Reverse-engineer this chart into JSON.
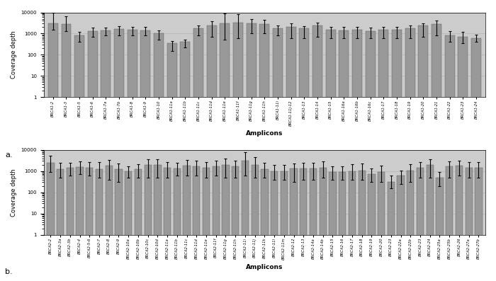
{
  "brca1_labels": [
    "BRCA1-2",
    "BRCA1-3",
    "BRCA1-5",
    "BRCA1-6",
    "BRCA1-7a",
    "BRCA1-7b",
    "BRCA1-8",
    "BRCA1-9",
    "BRCA1-10",
    "BRCA1-11a",
    "BRCA1-11b",
    "BRCA1-11c",
    "BRCA1-11d",
    "BRCA1-11e",
    "BRCA1-11f",
    "BRCA1-11g",
    "BRCA1-11h",
    "BRCA1-11i",
    "BRCA1-11j-12",
    "BRCA1-13",
    "BRCA1-14",
    "BRCA1-15",
    "BRCA1-16a",
    "BRCA1-16b",
    "BRCA1-16c",
    "BRCA1-17",
    "BRCA1-18",
    "BRCA1-19",
    "BRCA1-20",
    "BRCA1-21",
    "BRCA1-22",
    "BRCA1-23",
    "BRCA1-24"
  ],
  "brca1_values": [
    3000,
    2800,
    800,
    1300,
    1400,
    1600,
    1500,
    1400,
    1000,
    350,
    420,
    1800,
    2500,
    3000,
    3200,
    3000,
    2800,
    1800,
    2000,
    1800,
    2500,
    1500,
    1400,
    1500,
    1300,
    1500,
    1500,
    1800,
    2500,
    2800,
    800,
    700,
    600
  ],
  "brca1_err_low": [
    1500,
    1500,
    400,
    600,
    600,
    800,
    700,
    600,
    500,
    200,
    200,
    1000,
    1800,
    2500,
    2600,
    2000,
    1800,
    1000,
    1400,
    1200,
    1800,
    900,
    800,
    900,
    700,
    900,
    900,
    1200,
    1800,
    2000,
    400,
    350,
    200
  ],
  "brca1_err_high": [
    6500,
    4000,
    400,
    600,
    500,
    600,
    500,
    600,
    400,
    100,
    100,
    600,
    1200,
    6000,
    5000,
    1800,
    1700,
    700,
    1000,
    500,
    700,
    600,
    600,
    600,
    600,
    600,
    600,
    600,
    600,
    1200,
    500,
    500,
    300
  ],
  "brca2_labels": [
    "BRCA2-2",
    "BRCA2-3a",
    "BRCA2-3b",
    "BRCA2-4",
    "BRCA2-5-6",
    "BRCA2-7",
    "BRCA2-8",
    "BRCA2-9",
    "BRCA2-10a",
    "BRCA2-10b",
    "BRCA2-10c",
    "BRCA2-10d",
    "BRCA2-11a",
    "BRCA2-11b",
    "BRCA2-11c",
    "BRCA2-11d",
    "BRCA2-11e",
    "BRCA2-11f",
    "BRCA2-11g",
    "BRCA2-11h",
    "BRCA2-11i",
    "BRCA2-11j",
    "BRCA2-11k",
    "BRCA2-11l",
    "BRCA2-11m",
    "BRCA2-12",
    "BRCA2-13",
    "BRCA2-14a",
    "BRCA2-14b",
    "BRCA2-15",
    "BRCA2-16",
    "BRCA2-17",
    "BRCA2-18",
    "BRCA2-19",
    "BRCA2-20",
    "BRCA2-23",
    "BRCA2-22a",
    "BRCA2-22b",
    "BRCA2-23",
    "BRCA2-24",
    "BRCA2-25a",
    "BRCA2-25b",
    "BRCA2-26",
    "BRCA2-27a",
    "BRCA2-27b"
  ],
  "brca2_values": [
    2500,
    1200,
    1400,
    1600,
    1500,
    1200,
    1800,
    1200,
    1000,
    1200,
    1900,
    1900,
    1500,
    1300,
    1800,
    1700,
    1400,
    1700,
    2000,
    1700,
    3000,
    2000,
    1200,
    1000,
    1000,
    1300,
    1300,
    1300,
    1500,
    900,
    900,
    1000,
    1100,
    700,
    900,
    300,
    600,
    1100,
    1500,
    2000,
    500,
    1700,
    1800,
    1400,
    1500
  ],
  "brca2_err_low": [
    1600,
    700,
    800,
    900,
    900,
    700,
    1400,
    900,
    500,
    700,
    1400,
    1400,
    1000,
    700,
    1200,
    1100,
    900,
    1100,
    1500,
    1200,
    2400,
    1500,
    700,
    600,
    600,
    1000,
    900,
    900,
    1000,
    500,
    500,
    600,
    700,
    400,
    600,
    150,
    350,
    800,
    1000,
    1500,
    300,
    1200,
    1200,
    900,
    1000
  ],
  "brca2_err_high": [
    2800,
    1200,
    1000,
    1200,
    1100,
    1400,
    1500,
    1100,
    700,
    1000,
    1800,
    1800,
    1200,
    1200,
    1500,
    1500,
    1200,
    1500,
    2000,
    1500,
    5000,
    2500,
    1200,
    1000,
    1000,
    1000,
    1200,
    1200,
    1400,
    800,
    800,
    1200,
    1200,
    600,
    900,
    300,
    500,
    1000,
    1200,
    1500,
    400,
    1200,
    1400,
    1200,
    1200
  ],
  "bar_color": "#999999",
  "err_color": "#000000",
  "grid_color": "#bbbbbb",
  "bg_color": "#cccccc",
  "ylabel": "Coverage depth",
  "xlabel": "Amplicons",
  "label_a": "a.",
  "label_b": "b.",
  "ylim_low": 1,
  "ylim_high": 10000,
  "yticks": [
    1,
    10,
    100,
    1000,
    10000
  ]
}
